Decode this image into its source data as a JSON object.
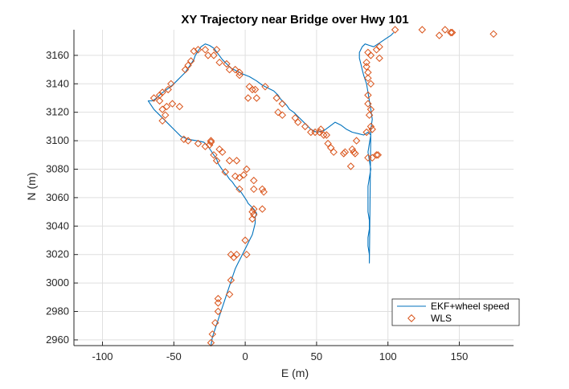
{
  "chart_data": {
    "type": "line",
    "title": "XY Trajectory near Bridge over Hwy 101",
    "xlabel": "E (m)",
    "ylabel": "N (m)",
    "xlim": [
      -120,
      188
    ],
    "ylim": [
      2956,
      3178
    ],
    "xticks": [
      -100,
      -50,
      0,
      50,
      100,
      150
    ],
    "yticks": [
      2960,
      2980,
      3000,
      3020,
      3040,
      3060,
      3080,
      3100,
      3120,
      3140,
      3160
    ],
    "grid": true,
    "legend_position": "bottom-right",
    "colors": {
      "ekf": "#0072bd",
      "wls": "#d95319",
      "grid": "#dfdfdf",
      "axis": "#262626"
    },
    "series": [
      {
        "name": "EKF+wheel speed",
        "style": "line",
        "points": [
          [
            -24,
            2956
          ],
          [
            -23,
            2962
          ],
          [
            -21,
            2968
          ],
          [
            -19,
            2974
          ],
          [
            -17,
            2980
          ],
          [
            -15,
            2986
          ],
          [
            -13,
            2992
          ],
          [
            -11,
            2998
          ],
          [
            -9,
            3004
          ],
          [
            -7,
            3010
          ],
          [
            -5,
            3014
          ],
          [
            -3,
            3018
          ],
          [
            -1,
            3022
          ],
          [
            1,
            3026
          ],
          [
            3,
            3030
          ],
          [
            5,
            3034
          ],
          [
            6,
            3038
          ],
          [
            7,
            3042
          ],
          [
            7,
            3046
          ],
          [
            8,
            3049
          ],
          [
            6,
            3052
          ],
          [
            4,
            3054
          ],
          [
            2,
            3056
          ],
          [
            1,
            3058
          ],
          [
            -1,
            3061
          ],
          [
            -3,
            3064
          ],
          [
            -5,
            3066
          ],
          [
            -7,
            3068
          ],
          [
            -9,
            3071
          ],
          [
            -11,
            3073
          ],
          [
            -13,
            3076
          ],
          [
            -15,
            3078
          ],
          [
            -17,
            3081
          ],
          [
            -19,
            3084
          ],
          [
            -20,
            3087
          ],
          [
            -22,
            3090
          ],
          [
            -24,
            3093
          ],
          [
            -26,
            3096
          ],
          [
            -29,
            3099
          ],
          [
            -34,
            3100
          ],
          [
            -40,
            3101
          ],
          [
            -45,
            3103
          ],
          [
            -48,
            3106
          ],
          [
            -51,
            3109
          ],
          [
            -54,
            3112
          ],
          [
            -57,
            3115
          ],
          [
            -60,
            3118
          ],
          [
            -64,
            3122
          ],
          [
            -68,
            3128
          ],
          [
            -65,
            3128
          ],
          [
            -62,
            3130
          ],
          [
            -59,
            3133
          ],
          [
            -55,
            3136
          ],
          [
            -51,
            3139
          ],
          [
            -48,
            3142
          ],
          [
            -45,
            3145
          ],
          [
            -42,
            3148
          ],
          [
            -40,
            3151
          ],
          [
            -38,
            3154
          ],
          [
            -36,
            3157
          ],
          [
            -35,
            3160
          ],
          [
            -33,
            3163
          ],
          [
            -31,
            3166
          ],
          [
            -28,
            3168
          ],
          [
            -25,
            3167
          ],
          [
            -22,
            3165
          ],
          [
            -19,
            3161
          ],
          [
            -16,
            3157
          ],
          [
            -13,
            3154
          ],
          [
            -10,
            3151
          ],
          [
            -6,
            3149
          ],
          [
            -2,
            3147
          ],
          [
            3,
            3145
          ],
          [
            8,
            3142
          ],
          [
            12,
            3139
          ],
          [
            16,
            3137
          ],
          [
            20,
            3135
          ],
          [
            23,
            3132
          ],
          [
            25,
            3129
          ],
          [
            27,
            3127
          ],
          [
            29,
            3125
          ],
          [
            31,
            3122
          ],
          [
            34,
            3120
          ],
          [
            37,
            3117
          ],
          [
            40,
            3114
          ],
          [
            43,
            3111
          ],
          [
            46,
            3108
          ],
          [
            50,
            3106
          ],
          [
            55,
            3107
          ],
          [
            59,
            3110
          ],
          [
            63,
            3113
          ],
          [
            67,
            3111
          ],
          [
            71,
            3108
          ],
          [
            75,
            3106
          ],
          [
            79,
            3105
          ],
          [
            83,
            3104
          ],
          [
            86,
            3106
          ],
          [
            88,
            3104
          ],
          [
            87,
            3098
          ],
          [
            86,
            3092
          ],
          [
            87,
            3086
          ],
          [
            88,
            3080
          ],
          [
            87,
            3074
          ],
          [
            86,
            3068
          ],
          [
            86,
            3062
          ],
          [
            86,
            3056
          ],
          [
            86,
            3050
          ],
          [
            87,
            3044
          ],
          [
            87,
            3038
          ],
          [
            86,
            3032
          ],
          [
            86,
            3026
          ],
          [
            87,
            3020
          ],
          [
            87,
            3014
          ],
          [
            88,
            3108
          ],
          [
            89,
            3115
          ],
          [
            88,
            3122
          ],
          [
            87,
            3128
          ],
          [
            86,
            3134
          ],
          [
            85,
            3140
          ],
          [
            83,
            3146
          ],
          [
            82,
            3150
          ],
          [
            81,
            3154
          ],
          [
            80,
            3158
          ],
          [
            80,
            3162
          ],
          [
            82,
            3166
          ],
          [
            84,
            3168
          ],
          [
            87,
            3167
          ],
          [
            90,
            3166
          ],
          [
            93,
            3168
          ],
          [
            96,
            3170
          ],
          [
            99,
            3172
          ],
          [
            102,
            3174
          ],
          [
            104,
            3176
          ]
        ]
      },
      {
        "name": "WLS",
        "style": "diamond-markers",
        "points": [
          [
            -24,
            2958
          ],
          [
            -23,
            2964
          ],
          [
            -21,
            2972
          ],
          [
            -19,
            2980
          ],
          [
            -19,
            2986
          ],
          [
            -19,
            2989
          ],
          [
            -11,
            2992
          ],
          [
            -10,
            3002
          ],
          [
            -10,
            3020
          ],
          [
            -8,
            3018
          ],
          [
            -6,
            3020
          ],
          [
            1,
            3020
          ],
          [
            0,
            3030
          ],
          [
            5,
            3045
          ],
          [
            6,
            3048
          ],
          [
            6,
            3052
          ],
          [
            5,
            3050
          ],
          [
            12,
            3052
          ],
          [
            13,
            3064
          ],
          [
            12,
            3066
          ],
          [
            -4,
            3066
          ],
          [
            6,
            3072
          ],
          [
            6,
            3066
          ],
          [
            -1,
            3076
          ],
          [
            -4,
            3074
          ],
          [
            -7,
            3075
          ],
          [
            1,
            3080
          ],
          [
            -14,
            3078
          ],
          [
            -20,
            3086
          ],
          [
            -22,
            3090
          ],
          [
            -18,
            3094
          ],
          [
            -25,
            3097
          ],
          [
            -28,
            3096
          ],
          [
            -24,
            3100
          ],
          [
            -24,
            3099
          ],
          [
            -16,
            3092
          ],
          [
            -11,
            3086
          ],
          [
            -6,
            3086
          ],
          [
            -33,
            3098
          ],
          [
            -43,
            3101
          ],
          [
            -40,
            3100
          ],
          [
            -46,
            3124
          ],
          [
            -58,
            3114
          ],
          [
            -55,
            3124
          ],
          [
            -51,
            3126
          ],
          [
            -56,
            3118
          ],
          [
            -58,
            3122
          ],
          [
            -60,
            3128
          ],
          [
            -64,
            3130
          ],
          [
            -60,
            3132
          ],
          [
            -58,
            3134
          ],
          [
            -54,
            3136
          ],
          [
            -52,
            3140
          ],
          [
            -42,
            3150
          ],
          [
            -40,
            3153
          ],
          [
            -38,
            3156
          ],
          [
            -33,
            3164
          ],
          [
            -36,
            3163
          ],
          [
            -28,
            3164
          ],
          [
            -26,
            3160
          ],
          [
            -22,
            3160
          ],
          [
            -20,
            3164
          ],
          [
            -18,
            3155
          ],
          [
            -13,
            3154
          ],
          [
            -11,
            3150
          ],
          [
            -7,
            3150
          ],
          [
            -4,
            3148
          ],
          [
            -4,
            3146
          ],
          [
            2,
            3130
          ],
          [
            3,
            3138
          ],
          [
            5,
            3136
          ],
          [
            7,
            3136
          ],
          [
            8,
            3130
          ],
          [
            14,
            3138
          ],
          [
            22,
            3130
          ],
          [
            26,
            3126
          ],
          [
            26,
            3118
          ],
          [
            23,
            3120
          ],
          [
            35,
            3116
          ],
          [
            37,
            3113
          ],
          [
            42,
            3110
          ],
          [
            46,
            3106
          ],
          [
            49,
            3106
          ],
          [
            52,
            3106
          ],
          [
            53,
            3108
          ],
          [
            55,
            3104
          ],
          [
            57,
            3104
          ],
          [
            58,
            3098
          ],
          [
            60,
            3095
          ],
          [
            62,
            3092
          ],
          [
            69,
            3091
          ],
          [
            70,
            3092
          ],
          [
            74,
            3082
          ],
          [
            75,
            3094
          ],
          [
            76,
            3092
          ],
          [
            77,
            3091
          ],
          [
            78,
            3100
          ],
          [
            85,
            3106
          ],
          [
            89,
            3108
          ],
          [
            88,
            3110
          ],
          [
            88,
            3122
          ],
          [
            87,
            3118
          ],
          [
            86,
            3126
          ],
          [
            86,
            3132
          ],
          [
            88,
            3140
          ],
          [
            86,
            3144
          ],
          [
            86,
            3148
          ],
          [
            85,
            3155
          ],
          [
            85,
            3152
          ],
          [
            86,
            3162
          ],
          [
            88,
            3160
          ],
          [
            92,
            3164
          ],
          [
            94,
            3166
          ],
          [
            94,
            3158
          ],
          [
            92,
            3090
          ],
          [
            93,
            3090
          ],
          [
            89,
            3088
          ],
          [
            86,
            3088
          ],
          [
            105,
            3178
          ],
          [
            124,
            3178
          ],
          [
            136,
            3174
          ],
          [
            140,
            3178
          ],
          [
            144,
            3176
          ],
          [
            145,
            3176
          ],
          [
            174,
            3175
          ]
        ]
      }
    ]
  }
}
